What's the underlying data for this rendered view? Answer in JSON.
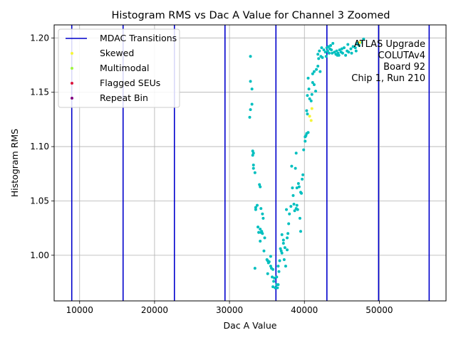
{
  "chart_data": {
    "type": "scatter",
    "title": "Histogram RMS vs Dac A Value for Channel 3 Zoomed",
    "xlabel": "Dac A Value",
    "ylabel": "Histogram RMS",
    "xlim": [
      6600,
      58900
    ],
    "ylim": [
      0.958,
      1.212
    ],
    "xticks": [
      10000,
      20000,
      30000,
      40000,
      50000
    ],
    "xtick_labels": [
      "10000",
      "20000",
      "30000",
      "40000",
      "50000"
    ],
    "yticks": [
      1.0,
      1.05,
      1.1,
      1.15,
      1.2
    ],
    "ytick_labels": [
      "1.00",
      "1.05",
      "1.10",
      "1.15",
      "1.20"
    ],
    "grid": true,
    "legend_position": "top-left",
    "legend": [
      {
        "label": "MDAC Transitions",
        "kind": "line",
        "color": "#0000cc"
      },
      {
        "label": "Skewed",
        "kind": "dot",
        "color": "#f5f53a"
      },
      {
        "label": "Multimodal",
        "kind": "dot",
        "color": "#9ef542"
      },
      {
        "label": "Flagged SEUs",
        "kind": "dot",
        "color": "#dc143c"
      },
      {
        "label": "Repeat Bin",
        "kind": "dot",
        "color": "#800080"
      }
    ],
    "annotation": [
      "ATLAS Upgrade",
      "COLUTAv4",
      "Board 92",
      "Chip 1, Run 210"
    ],
    "mdac_transitions": [
      8950,
      15800,
      22650,
      29400,
      36200,
      43000,
      49900,
      56650
    ],
    "series": [
      {
        "name": "Histogram RMS",
        "color": "#00bfbf",
        "points": [
          [
            32800,
            1.183
          ],
          [
            32800,
            1.16
          ],
          [
            32800,
            1.134
          ],
          [
            32700,
            1.127
          ],
          [
            33000,
            1.153
          ],
          [
            33000,
            1.139
          ],
          [
            33100,
            1.096
          ],
          [
            33100,
            1.092
          ],
          [
            33200,
            1.094
          ],
          [
            33200,
            1.083
          ],
          [
            33200,
            1.08
          ],
          [
            33400,
            1.076
          ],
          [
            33400,
            0.988
          ],
          [
            34000,
            1.065
          ],
          [
            34100,
            1.063
          ],
          [
            33700,
            1.046
          ],
          [
            33500,
            1.044
          ],
          [
            33500,
            1.042
          ],
          [
            34200,
            1.043
          ],
          [
            34400,
            1.038
          ],
          [
            34500,
            1.034
          ],
          [
            33800,
            1.026
          ],
          [
            33900,
            1.021
          ],
          [
            34100,
            1.024
          ],
          [
            34200,
            1.021
          ],
          [
            34300,
            1.022
          ],
          [
            34400,
            1.02
          ],
          [
            34100,
            1.013
          ],
          [
            34700,
            1.016
          ],
          [
            34600,
            1.004
          ],
          [
            35000,
            0.996
          ],
          [
            35100,
            0.995
          ],
          [
            35200,
            0.993
          ],
          [
            35300,
            0.994
          ],
          [
            35500,
            0.99
          ],
          [
            35500,
            0.999
          ],
          [
            35100,
            0.983
          ],
          [
            35700,
            0.98
          ],
          [
            35800,
            0.987
          ],
          [
            35600,
            0.988
          ],
          [
            35900,
            0.976
          ],
          [
            36000,
            0.979
          ],
          [
            35800,
            0.971
          ],
          [
            36100,
            0.97
          ],
          [
            36300,
            0.973
          ],
          [
            36400,
            0.97
          ],
          [
            36500,
            0.973
          ],
          [
            36300,
            0.98
          ],
          [
            36600,
            0.985
          ],
          [
            36500,
            0.99
          ],
          [
            36700,
            0.995
          ],
          [
            36800,
            1.006
          ],
          [
            36900,
            1.004
          ],
          [
            37000,
            1.002
          ],
          [
            37000,
            1.019
          ],
          [
            37200,
            1.014
          ],
          [
            37200,
            1.011
          ],
          [
            37400,
            1.007
          ],
          [
            37300,
            0.996
          ],
          [
            37500,
            0.99
          ],
          [
            37700,
            1.005
          ],
          [
            37700,
            1.016
          ],
          [
            37800,
            1.02
          ],
          [
            37900,
            1.029
          ],
          [
            38000,
            1.038
          ],
          [
            38200,
            1.045
          ],
          [
            37600,
            1.042
          ],
          [
            38400,
            1.062
          ],
          [
            38500,
            1.055
          ],
          [
            38600,
            1.047
          ],
          [
            38700,
            1.041
          ],
          [
            38900,
            1.043
          ],
          [
            39000,
            1.046
          ],
          [
            39100,
            1.042
          ],
          [
            39000,
            1.062
          ],
          [
            39200,
            1.066
          ],
          [
            39300,
            1.063
          ],
          [
            39500,
            1.058
          ],
          [
            39600,
            1.057
          ],
          [
            39700,
            1.07
          ],
          [
            39800,
            1.074
          ],
          [
            39400,
            1.034
          ],
          [
            39500,
            1.022
          ],
          [
            38800,
            1.08
          ],
          [
            38300,
            1.082
          ],
          [
            38900,
            1.094
          ],
          [
            39900,
            1.097
          ],
          [
            40100,
            1.105
          ],
          [
            40100,
            1.109
          ],
          [
            40300,
            1.112
          ],
          [
            40200,
            1.11
          ],
          [
            40500,
            1.113
          ],
          [
            40400,
            1.13
          ],
          [
            40300,
            1.133
          ],
          [
            40400,
            1.147
          ],
          [
            40700,
            1.144
          ],
          [
            40900,
            1.142
          ],
          [
            41000,
            1.148
          ],
          [
            40600,
            1.153
          ],
          [
            40500,
            1.163
          ],
          [
            41100,
            1.159
          ],
          [
            41300,
            1.157
          ],
          [
            41500,
            1.151
          ],
          [
            41100,
            1.167
          ],
          [
            41300,
            1.169
          ],
          [
            41600,
            1.171
          ],
          [
            41800,
            1.174
          ],
          [
            42100,
            1.169
          ],
          [
            41900,
            1.181
          ],
          [
            42200,
            1.183
          ],
          [
            42400,
            1.182
          ],
          [
            41800,
            1.185
          ],
          [
            42000,
            1.188
          ],
          [
            42300,
            1.191
          ],
          [
            42600,
            1.189
          ],
          [
            42800,
            1.187
          ],
          [
            43000,
            1.191
          ],
          [
            43100,
            1.188
          ],
          [
            43200,
            1.192
          ],
          [
            43400,
            1.19
          ],
          [
            43500,
            1.193
          ],
          [
            43600,
            1.189
          ],
          [
            43800,
            1.195
          ],
          [
            44000,
            1.187
          ],
          [
            44200,
            1.185
          ],
          [
            44300,
            1.188
          ],
          [
            44400,
            1.184
          ],
          [
            44500,
            1.186
          ],
          [
            44700,
            1.189
          ],
          [
            44900,
            1.187
          ],
          [
            45100,
            1.186
          ],
          [
            45300,
            1.191
          ],
          [
            45500,
            1.184
          ],
          [
            45700,
            1.188
          ],
          [
            45900,
            1.187
          ],
          [
            46200,
            1.19
          ],
          [
            46500,
            1.192
          ],
          [
            46800,
            1.191
          ],
          [
            47000,
            1.195
          ],
          [
            47300,
            1.193
          ],
          [
            47600,
            1.196
          ],
          [
            47900,
            1.199
          ],
          [
            46900,
            1.188
          ],
          [
            43700,
            1.186
          ],
          [
            42900,
            1.183
          ],
          [
            43300,
            1.186
          ],
          [
            44600,
            1.184
          ],
          [
            45000,
            1.19
          ],
          [
            45800,
            1.194
          ],
          [
            46300,
            1.186
          ]
        ]
      },
      {
        "name": "Skewed",
        "color": "#f5f53a",
        "points": [
          [
            40900,
            1.124
          ],
          [
            41000,
            1.135
          ],
          [
            40700,
            1.128
          ],
          [
            47400,
            1.196
          ]
        ]
      }
    ]
  }
}
